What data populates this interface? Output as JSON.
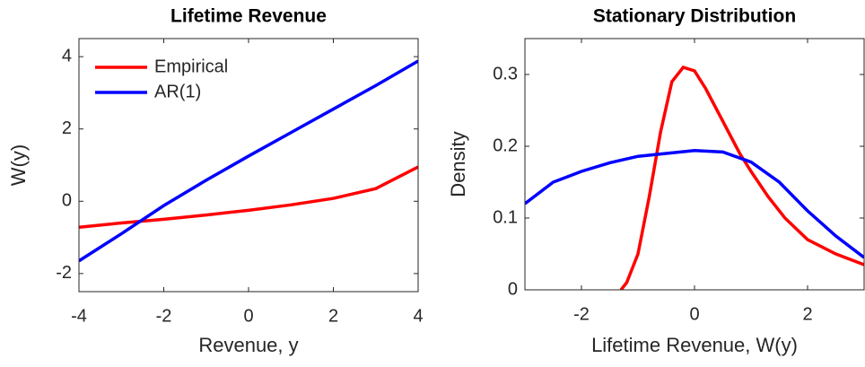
{
  "chart_data": [
    {
      "type": "line",
      "title": "Lifetime Revenue",
      "xlabel": "Revenue, y",
      "ylabel": "W(y)",
      "xlim": [
        -4,
        4
      ],
      "ylim": [
        -2.5,
        4.5
      ],
      "xticks": [
        -4,
        -2,
        0,
        2,
        4
      ],
      "yticks": [
        -2,
        0,
        2,
        4
      ],
      "legend": "upper left",
      "series": [
        {
          "name": "Empirical",
          "color": "#ff0000",
          "x": [
            -4,
            -3,
            -2,
            -1,
            0,
            1,
            2,
            3,
            4
          ],
          "values": [
            -0.72,
            -0.6,
            -0.5,
            -0.38,
            -0.25,
            -0.1,
            0.08,
            0.35,
            0.95
          ]
        },
        {
          "name": "AR(1)",
          "color": "#0000ff",
          "x": [
            -4,
            -3,
            -2,
            -1,
            0,
            1,
            2,
            3,
            4
          ],
          "values": [
            -1.65,
            -0.9,
            -0.12,
            0.58,
            1.25,
            1.9,
            2.55,
            3.2,
            3.88
          ]
        }
      ]
    },
    {
      "type": "line",
      "title": "Stationary Distribution",
      "xlabel": "Lifetime Revenue, W(y)",
      "ylabel": "Density",
      "xlim": [
        -3,
        3
      ],
      "ylim": [
        0,
        0.35
      ],
      "xticks": [
        -2,
        0,
        2
      ],
      "yticks": [
        0,
        0.1,
        0.2,
        0.3
      ],
      "series": [
        {
          "color": "#ff0000",
          "x": [
            -1.3,
            -1.2,
            -1.0,
            -0.8,
            -0.6,
            -0.4,
            -0.2,
            0,
            0.2,
            0.4,
            0.6,
            0.8,
            1.0,
            1.3,
            1.6,
            2.0,
            2.5,
            3.0
          ],
          "values": [
            0,
            0.01,
            0.05,
            0.13,
            0.22,
            0.29,
            0.31,
            0.305,
            0.28,
            0.25,
            0.22,
            0.19,
            0.165,
            0.13,
            0.1,
            0.07,
            0.05,
            0.035
          ]
        },
        {
          "color": "#0000ff",
          "x": [
            -3,
            -2.5,
            -2,
            -1.5,
            -1,
            -0.5,
            0,
            0.5,
            1,
            1.5,
            2,
            2.5,
            3
          ],
          "values": [
            0.12,
            0.15,
            0.165,
            0.177,
            0.186,
            0.19,
            0.194,
            0.192,
            0.178,
            0.15,
            0.11,
            0.075,
            0.045
          ]
        }
      ]
    }
  ]
}
